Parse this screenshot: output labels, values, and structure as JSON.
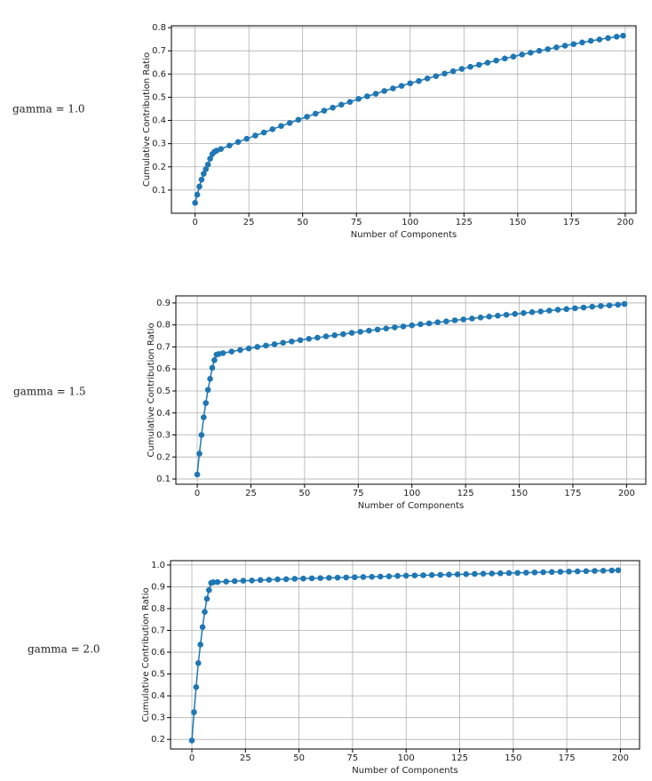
{
  "chart_data": [
    {
      "type": "line",
      "side_label": "gamma = 1.0",
      "xlabel": "Number of Components",
      "ylabel": "Cumulative Contribution Ratio",
      "color": "#1f77b4",
      "grid": true,
      "xlim": [
        -11,
        205
      ],
      "ylim": [
        0.0,
        0.808
      ],
      "xticks": [
        0,
        25,
        50,
        75,
        100,
        125,
        150,
        175,
        200
      ],
      "yticks": [
        0.1,
        0.2,
        0.3,
        0.4,
        0.5,
        0.6,
        0.7,
        0.8
      ],
      "x": [
        0,
        1,
        2,
        3,
        4,
        5,
        6,
        7,
        8,
        9,
        10,
        12,
        16,
        20,
        24,
        28,
        32,
        36,
        40,
        44,
        48,
        52,
        56,
        60,
        64,
        68,
        72,
        76,
        80,
        84,
        88,
        92,
        96,
        100,
        104,
        108,
        112,
        116,
        120,
        124,
        128,
        132,
        136,
        140,
        144,
        148,
        152,
        156,
        160,
        164,
        168,
        172,
        176,
        180,
        184,
        188,
        192,
        196,
        199
      ],
      "values": [
        0.045,
        0.08,
        0.115,
        0.145,
        0.17,
        0.19,
        0.21,
        0.235,
        0.255,
        0.265,
        0.27,
        0.277,
        0.292,
        0.307,
        0.321,
        0.335,
        0.348,
        0.362,
        0.376,
        0.389,
        0.403,
        0.416,
        0.429,
        0.442,
        0.455,
        0.468,
        0.48,
        0.493,
        0.504,
        0.515,
        0.527,
        0.538,
        0.549,
        0.56,
        0.57,
        0.581,
        0.591,
        0.602,
        0.612,
        0.622,
        0.631,
        0.64,
        0.649,
        0.658,
        0.667,
        0.675,
        0.684,
        0.692,
        0.7,
        0.707,
        0.715,
        0.722,
        0.729,
        0.736,
        0.743,
        0.749,
        0.755,
        0.761,
        0.765
      ]
    },
    {
      "type": "line",
      "side_label": "gamma = 1.5",
      "xlabel": "Number of Components",
      "ylabel": "Cumulative Contribution Ratio",
      "color": "#1f77b4",
      "grid": true,
      "xlim": [
        -9.95,
        208.95
      ],
      "ylim": [
        0.076,
        0.932
      ],
      "xticks": [
        0,
        25,
        50,
        75,
        100,
        125,
        150,
        175,
        200
      ],
      "yticks": [
        0.1,
        0.2,
        0.3,
        0.4,
        0.5,
        0.6,
        0.7,
        0.8,
        0.9
      ],
      "x": [
        0,
        1,
        2,
        3,
        4,
        5,
        6,
        7,
        8,
        9,
        10,
        12,
        16,
        20,
        24,
        28,
        32,
        36,
        40,
        44,
        48,
        52,
        56,
        60,
        64,
        68,
        72,
        76,
        80,
        84,
        88,
        92,
        96,
        100,
        104,
        108,
        112,
        116,
        120,
        124,
        128,
        132,
        136,
        140,
        144,
        148,
        152,
        156,
        160,
        164,
        168,
        172,
        176,
        180,
        184,
        188,
        192,
        196,
        199
      ],
      "values": [
        0.12,
        0.215,
        0.3,
        0.38,
        0.445,
        0.505,
        0.555,
        0.605,
        0.64,
        0.665,
        0.668,
        0.672,
        0.679,
        0.686,
        0.693,
        0.7,
        0.706,
        0.712,
        0.719,
        0.725,
        0.731,
        0.737,
        0.742,
        0.748,
        0.753,
        0.758,
        0.764,
        0.769,
        0.774,
        0.779,
        0.784,
        0.789,
        0.793,
        0.798,
        0.803,
        0.807,
        0.812,
        0.816,
        0.821,
        0.825,
        0.829,
        0.834,
        0.838,
        0.842,
        0.846,
        0.85,
        0.854,
        0.858,
        0.861,
        0.865,
        0.869,
        0.872,
        0.876,
        0.879,
        0.883,
        0.886,
        0.889,
        0.892,
        0.895
      ]
    },
    {
      "type": "line",
      "side_label": "gamma = 2.0",
      "xlabel": "Number of Components",
      "ylabel": "Cumulative Contribution Ratio",
      "color": "#1f77b4",
      "grid": true,
      "xlim": [
        -9.95,
        208.95
      ],
      "ylim": [
        0.156,
        1.02
      ],
      "xticks": [
        0,
        25,
        50,
        75,
        100,
        125,
        150,
        175,
        200
      ],
      "yticks": [
        0.2,
        0.3,
        0.4,
        0.5,
        0.6,
        0.7,
        0.8,
        0.9,
        {
          "value": 1,
          "label": "1.0"
        }
      ],
      "x": [
        0,
        1,
        2,
        3,
        4,
        5,
        6,
        7,
        8,
        9,
        10,
        12,
        16,
        20,
        24,
        28,
        32,
        36,
        40,
        44,
        48,
        52,
        56,
        60,
        64,
        68,
        72,
        76,
        80,
        84,
        88,
        92,
        96,
        100,
        104,
        108,
        112,
        116,
        120,
        124,
        128,
        132,
        136,
        140,
        144,
        148,
        152,
        156,
        160,
        164,
        168,
        172,
        176,
        180,
        184,
        188,
        192,
        196,
        199
      ],
      "values": [
        0.195,
        0.325,
        0.44,
        0.55,
        0.635,
        0.715,
        0.785,
        0.845,
        0.885,
        0.918,
        0.921,
        0.922,
        0.924,
        0.926,
        0.928,
        0.929,
        0.931,
        0.932,
        0.934,
        0.935,
        0.937,
        0.938,
        0.939,
        0.94,
        0.941,
        0.942,
        0.943,
        0.944,
        0.945,
        0.946,
        0.947,
        0.948,
        0.95,
        0.951,
        0.952,
        0.953,
        0.954,
        0.955,
        0.956,
        0.957,
        0.958,
        0.959,
        0.96,
        0.961,
        0.962,
        0.963,
        0.964,
        0.965,
        0.966,
        0.967,
        0.968,
        0.969,
        0.97,
        0.971,
        0.972,
        0.973,
        0.974,
        0.975,
        0.976
      ]
    }
  ]
}
